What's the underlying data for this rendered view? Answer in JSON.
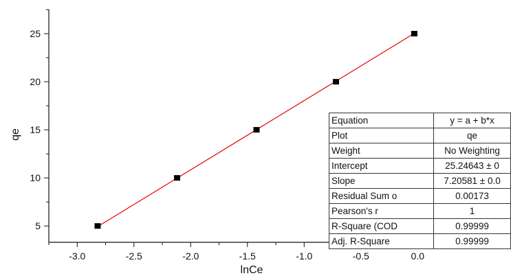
{
  "chart_data": {
    "type": "scatter",
    "xlabel": "lnCe",
    "ylabel": "qe",
    "xlim": [
      -3.25,
      0.18
    ],
    "ylim": [
      3.3,
      27.5
    ],
    "xticks": [
      -3.0,
      -2.5,
      -2.0,
      -1.5,
      -1.0,
      -0.5,
      0.0
    ],
    "xtick_labels": [
      "-3.0",
      "-2.5",
      "-2.0",
      "-1.5",
      "-1.0",
      "-0.5",
      "0.0"
    ],
    "yticks": [
      5,
      10,
      15,
      20,
      25
    ],
    "ytick_labels": [
      "5",
      "10",
      "15",
      "20",
      "25"
    ],
    "grid": false,
    "series": [
      {
        "type": "scatter",
        "marker": "square",
        "color": "#000000",
        "x": [
          -2.82,
          -2.12,
          -1.42,
          -0.72,
          -0.03
        ],
        "y": [
          5,
          10,
          15,
          20,
          25
        ]
      },
      {
        "type": "line",
        "color": "#e60000",
        "x": [
          -2.82,
          -0.03
        ],
        "y": [
          4.93,
          25.03
        ]
      }
    ],
    "table": [
      {
        "label": "Equation",
        "value": "y = a + b*x"
      },
      {
        "label": "Plot",
        "value": "qe"
      },
      {
        "label": "Weight",
        "value": "No Weighting"
      },
      {
        "label": "Intercept",
        "value": "25.24643 ± 0"
      },
      {
        "label": "Slope",
        "value": "7.20581 ± 0.0"
      },
      {
        "label": "Residual Sum o",
        "value": "0.00173"
      },
      {
        "label": "Pearson's r",
        "value": "1"
      },
      {
        "label": "R-Square (COD",
        "value": "0.99999"
      },
      {
        "label": "Adj. R-Square",
        "value": "0.99999"
      }
    ]
  }
}
